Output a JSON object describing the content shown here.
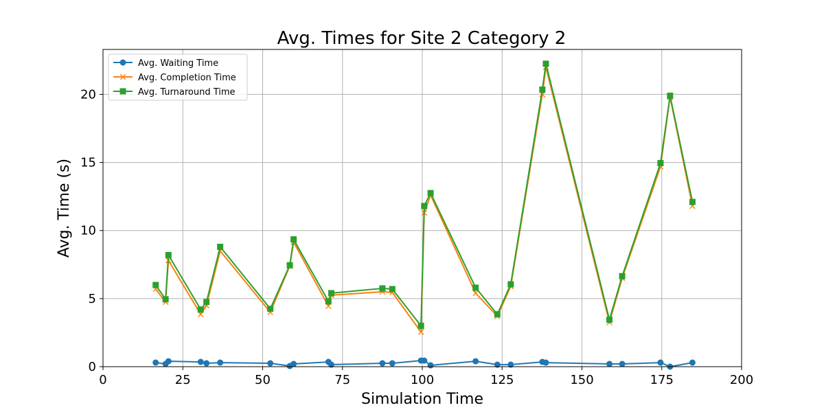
{
  "chart_data": {
    "type": "line",
    "title": "Avg. Times for Site 2 Category 2",
    "xlabel": "Simulation Time",
    "ylabel": "Avg. Time (s)",
    "xlim": [
      0,
      200
    ],
    "ylim": [
      0,
      23.3
    ],
    "xticks": [
      0,
      25,
      50,
      75,
      100,
      125,
      150,
      175,
      200
    ],
    "yticks": [
      0,
      5,
      10,
      15,
      20
    ],
    "grid": true,
    "legend_position": "top-left",
    "series": [
      {
        "name": "Avg. Waiting Time",
        "color": "#1f77b4",
        "marker": "circle",
        "x": [
          16.5,
          19.6,
          20.5,
          30.6,
          32.4,
          36.7,
          52.4,
          58.5,
          59.7,
          70.6,
          71.5,
          87.5,
          90.6,
          99.6,
          100.6,
          102.6,
          116.7,
          123.5,
          127.7,
          137.6,
          138.7,
          158.6,
          162.6,
          174.6,
          177.6,
          184.6
        ],
        "y": [
          0.3,
          0.2,
          0.4,
          0.35,
          0.25,
          0.3,
          0.25,
          0.05,
          0.2,
          0.35,
          0.15,
          0.25,
          0.25,
          0.45,
          0.45,
          0.1,
          0.4,
          0.15,
          0.15,
          0.35,
          0.3,
          0.2,
          0.2,
          0.3,
          0.0,
          0.3
        ]
      },
      {
        "name": "Avg. Completion Time",
        "color": "#ff7f0e",
        "marker": "x",
        "x": [
          16.5,
          19.6,
          20.5,
          30.6,
          32.4,
          36.7,
          52.4,
          58.5,
          59.7,
          70.6,
          71.5,
          87.5,
          90.6,
          99.6,
          100.6,
          102.6,
          116.7,
          123.5,
          127.7,
          137.6,
          138.7,
          158.6,
          162.6,
          174.6,
          177.6,
          184.6
        ],
        "y": [
          5.7,
          4.75,
          7.8,
          3.85,
          4.5,
          8.5,
          4.0,
          7.4,
          9.15,
          4.45,
          5.25,
          5.5,
          5.45,
          2.55,
          11.3,
          12.6,
          5.4,
          3.7,
          5.9,
          20.0,
          22.0,
          3.25,
          6.5,
          14.7,
          19.8,
          11.8
        ]
      },
      {
        "name": "Avg. Turnaround Time",
        "color": "#2ca02c",
        "marker": "square",
        "x": [
          16.5,
          19.6,
          20.5,
          30.6,
          32.4,
          36.7,
          52.4,
          58.5,
          59.7,
          70.6,
          71.5,
          87.5,
          90.6,
          99.6,
          100.6,
          102.6,
          116.7,
          123.5,
          127.7,
          137.6,
          138.7,
          158.6,
          162.6,
          174.6,
          177.6,
          184.6
        ],
        "y": [
          6.0,
          4.95,
          8.2,
          4.2,
          4.75,
          8.8,
          4.25,
          7.45,
          9.35,
          4.8,
          5.4,
          5.75,
          5.7,
          3.0,
          11.8,
          12.75,
          5.8,
          3.85,
          6.05,
          20.35,
          22.25,
          3.45,
          6.65,
          14.95,
          19.9,
          12.1
        ]
      }
    ]
  }
}
